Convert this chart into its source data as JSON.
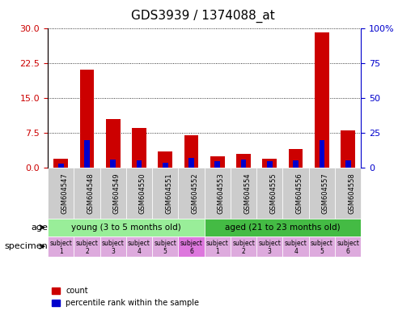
{
  "title": "GDS3939 / 1374088_at",
  "samples": [
    "GSM604547",
    "GSM604548",
    "GSM604549",
    "GSM604550",
    "GSM604551",
    "GSM604552",
    "GSM604553",
    "GSM604554",
    "GSM604555",
    "GSM604556",
    "GSM604557",
    "GSM604558"
  ],
  "count_values": [
    2.0,
    21.0,
    10.5,
    8.5,
    3.5,
    7.0,
    2.5,
    3.0,
    2.0,
    4.0,
    29.0,
    8.0
  ],
  "percentile_values": [
    3.0,
    20.0,
    6.0,
    5.0,
    3.5,
    7.0,
    4.5,
    6.0,
    4.5,
    5.5,
    20.0,
    5.0
  ],
  "left_yticks": [
    0,
    7.5,
    15,
    22.5,
    30
  ],
  "right_yticks": [
    0,
    25,
    50,
    75,
    100
  ],
  "left_ylim": [
    0,
    30
  ],
  "right_ylim": [
    0,
    100
  ],
  "left_ycolor": "#cc0000",
  "right_ycolor": "#0000cc",
  "bar_color_red": "#cc0000",
  "bar_color_blue": "#0000cc",
  "grid_color": "#000000",
  "bg_color": "#ffffff",
  "sample_bg_color": "#cccccc",
  "age_groups": [
    {
      "label": "young (3 to 5 months old)",
      "start": 0,
      "end": 6,
      "color": "#99ee99"
    },
    {
      "label": "aged (21 to 23 months old)",
      "start": 6,
      "end": 12,
      "color": "#44bb44"
    }
  ],
  "specimen_colors_light": "#ddaadd",
  "specimen_color_dark": "#dd77dd",
  "specimen_dark_indices": [
    5
  ],
  "specimen_labels_top": [
    "subject",
    "subject",
    "subject",
    "subject",
    "subject",
    "subject",
    "subject",
    "subject",
    "subject",
    "subject",
    "subject",
    "subject"
  ],
  "specimen_labels_bottom": [
    "1",
    "2",
    "3",
    "4",
    "5",
    "6",
    "1",
    "2",
    "3",
    "4",
    "5",
    "6"
  ],
  "age_label": "age",
  "specimen_label": "specimen",
  "legend_count": "count",
  "legend_percentile": "percentile rank within the sample",
  "title_fontsize": 11,
  "axis_tick_fontsize": 8,
  "sample_label_fontsize": 6,
  "age_fontsize": 8,
  "spec_fontsize": 5.5,
  "legend_fontsize": 7
}
